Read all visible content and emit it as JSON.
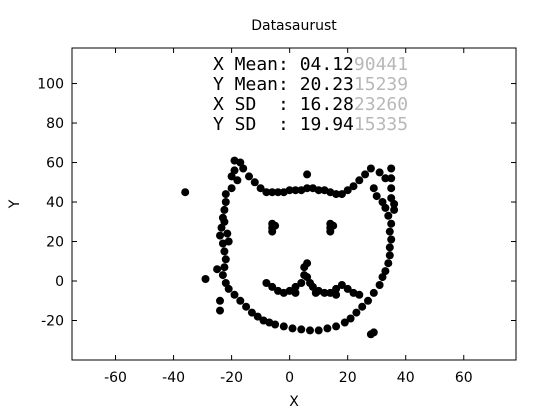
{
  "chart_data": {
    "type": "scatter",
    "title": "Datasaurust",
    "xlabel": "X",
    "ylabel": "Y",
    "xlim": [
      -75,
      78
    ],
    "ylim": [
      -40,
      118
    ],
    "xticks": [
      "-60",
      "-40",
      "-20",
      "0",
      "20",
      "40",
      "60"
    ],
    "yticks": [
      "-20",
      "0",
      "20",
      "40",
      "60",
      "80",
      "100"
    ],
    "grid": false,
    "legend": "none",
    "marker_color": "#000000",
    "stats": [
      {
        "label": "X Mean: ",
        "main": "04.12",
        "faded": "90441"
      },
      {
        "label": "Y Mean: ",
        "main": "20.23",
        "faded": "15239"
      },
      {
        "label": "X SD  : ",
        "main": "16.28",
        "faded": "23260"
      },
      {
        "label": "Y SD  : ",
        "main": "19.94",
        "faded": "15335"
      }
    ],
    "points": [
      [
        -36,
        45
      ],
      [
        -29,
        1
      ],
      [
        -25,
        6
      ],
      [
        -24,
        -10
      ],
      [
        -24,
        -15
      ],
      [
        -22,
        40
      ],
      [
        -22.5,
        36
      ],
      [
        -23,
        32
      ],
      [
        -23.5,
        27
      ],
      [
        -24,
        23
      ],
      [
        -23,
        19
      ],
      [
        -22.5,
        15
      ],
      [
        -22,
        11
      ],
      [
        -22.5,
        7
      ],
      [
        -23,
        3
      ],
      [
        -22,
        -1
      ],
      [
        -21,
        -4
      ],
      [
        -20,
        47
      ],
      [
        -22,
        44
      ],
      [
        -21,
        20
      ],
      [
        -21.5,
        24
      ],
      [
        -22.5,
        30
      ],
      [
        -19,
        -7
      ],
      [
        -17,
        -10
      ],
      [
        -15,
        -13
      ],
      [
        -13,
        -16
      ],
      [
        -11,
        -18
      ],
      [
        -9,
        -20
      ],
      [
        -7,
        -21
      ],
      [
        -5,
        -22
      ],
      [
        -2,
        -23
      ],
      [
        1,
        -24
      ],
      [
        4,
        -24.5
      ],
      [
        7,
        -25
      ],
      [
        10,
        -25
      ],
      [
        13,
        -24
      ],
      [
        16,
        -23
      ],
      [
        19,
        -21
      ],
      [
        21,
        -19
      ],
      [
        23,
        -16
      ],
      [
        25,
        -13
      ],
      [
        27,
        -10
      ],
      [
        29,
        -6
      ],
      [
        31,
        -2
      ],
      [
        32,
        2
      ],
      [
        33,
        5
      ],
      [
        34,
        9
      ],
      [
        34.5,
        13
      ],
      [
        34.5,
        17
      ],
      [
        35,
        21
      ],
      [
        34.5,
        25
      ],
      [
        35,
        29
      ],
      [
        34,
        33
      ],
      [
        33,
        37
      ],
      [
        32,
        40
      ],
      [
        30,
        43
      ],
      [
        29,
        47
      ],
      [
        35,
        57
      ],
      [
        35,
        52
      ],
      [
        35,
        47
      ],
      [
        35,
        42
      ],
      [
        33,
        52
      ],
      [
        31,
        55
      ],
      [
        28,
        57
      ],
      [
        26,
        54
      ],
      [
        24,
        51
      ],
      [
        22,
        48
      ],
      [
        20,
        46
      ],
      [
        18,
        44
      ],
      [
        29,
        -26
      ],
      [
        28,
        -27
      ],
      [
        36,
        36
      ],
      [
        36,
        39
      ],
      [
        -19,
        61
      ],
      [
        -17,
        60
      ],
      [
        -16,
        57
      ],
      [
        -14,
        53
      ],
      [
        -12,
        50
      ],
      [
        -10,
        47
      ],
      [
        -8,
        45
      ],
      [
        -6,
        45
      ],
      [
        -4,
        45
      ],
      [
        -2,
        45
      ],
      [
        0,
        46
      ],
      [
        2,
        46
      ],
      [
        4,
        46
      ],
      [
        6,
        47
      ],
      [
        8,
        47
      ],
      [
        10,
        46
      ],
      [
        12,
        46
      ],
      [
        14,
        45
      ],
      [
        16,
        44
      ],
      [
        -19,
        56
      ],
      [
        -20,
        53
      ],
      [
        -18,
        51
      ],
      [
        6,
        54
      ],
      [
        -6,
        29
      ],
      [
        -6,
        27
      ],
      [
        -6,
        25
      ],
      [
        -5,
        28
      ],
      [
        14,
        29
      ],
      [
        14,
        27
      ],
      [
        14,
        25
      ],
      [
        15,
        28
      ],
      [
        -8,
        -1
      ],
      [
        -6,
        -3
      ],
      [
        -4,
        -5
      ],
      [
        -2,
        -6
      ],
      [
        0,
        -5
      ],
      [
        2,
        -3
      ],
      [
        4,
        -1
      ],
      [
        5,
        3
      ],
      [
        5,
        7
      ],
      [
        6,
        9
      ],
      [
        6,
        2
      ],
      [
        7,
        -1
      ],
      [
        8,
        -3
      ],
      [
        10,
        -5
      ],
      [
        12,
        -6
      ],
      [
        14,
        -6
      ],
      [
        16,
        -4
      ],
      [
        18,
        -2
      ],
      [
        20,
        -4
      ],
      [
        22,
        -6
      ],
      [
        24,
        -7
      ],
      [
        2,
        -6
      ],
      [
        9,
        -6
      ],
      [
        16,
        -7
      ]
    ]
  }
}
